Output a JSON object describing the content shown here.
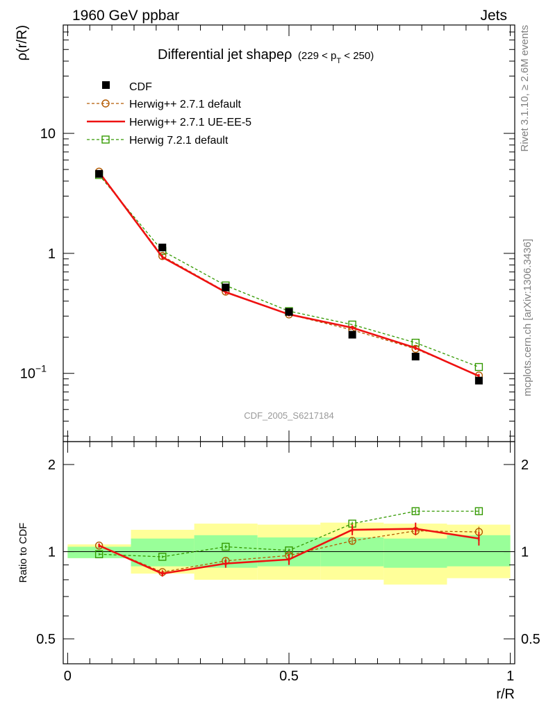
{
  "header": {
    "left": "1960 GeV ppbar",
    "right": "Jets"
  },
  "side_texts": {
    "rivet": "Rivet 3.1.10, ≥ 2.6M events",
    "mcplots": "mcplots.cern.ch [arXiv:1306.3436]"
  },
  "colors": {
    "cdf": "#000000",
    "herwigpp_default": "#b35900",
    "herwigpp_ueee5": "#ee1111",
    "herwig7": "#339900",
    "band_inner": "#99ff99",
    "band_outer": "#ffff99"
  },
  "chart_data": [
    {
      "type": "line",
      "yscale": "log",
      "title": "Differential jet shapeρ",
      "title_suffix": "(229 < p_T < 250)",
      "title_suffix_parts": {
        "pre": "(229 < p",
        "sub": "T",
        "post": " < 250)"
      },
      "ylabel": "ρ(r/R)",
      "xlabel": "",
      "xlim": [
        -0.01,
        1.01
      ],
      "ylim": [
        0.027,
        80
      ],
      "yticks_major": [
        {
          "value": 10,
          "label": "10"
        },
        {
          "value": 1,
          "label": "1"
        },
        {
          "value": 0.1,
          "label": "10",
          "sup": "−1"
        }
      ],
      "watermark": "CDF_2005_S6217184",
      "legend_position": "top-left",
      "x": [
        0.071,
        0.214,
        0.357,
        0.5,
        0.643,
        0.786,
        0.929
      ],
      "series": [
        {
          "name": "CDF",
          "style": "marker-square",
          "values": [
            4.6,
            1.12,
            0.52,
            0.325,
            0.21,
            0.138,
            0.087
          ]
        },
        {
          "name": "Herwig++ 2.7.1 default",
          "style": "dashed-circle",
          "values": [
            4.8,
            0.95,
            0.48,
            0.31,
            0.23,
            0.16,
            0.096
          ]
        },
        {
          "name": "Herwig++ 2.7.1 UE-EE-5",
          "style": "solid",
          "values": [
            4.75,
            0.93,
            0.475,
            0.31,
            0.24,
            0.163,
            0.095
          ]
        },
        {
          "name": "Herwig 7.2.1 default",
          "style": "dashed-square",
          "values": [
            4.5,
            1.05,
            0.54,
            0.33,
            0.255,
            0.18,
            0.113
          ]
        }
      ]
    },
    {
      "type": "line",
      "yscale": "log",
      "ylabel": "Ratio to CDF",
      "xlabel": "r/R",
      "xlim": [
        -0.01,
        1.01
      ],
      "ylim": [
        0.41,
        2.4
      ],
      "yticks_major": [
        {
          "value": 2,
          "label": "2"
        },
        {
          "value": 1,
          "label": "1"
        },
        {
          "value": 0.5,
          "label": "0.5"
        }
      ],
      "xticks_major": [
        {
          "value": 0,
          "label": "0"
        },
        {
          "value": 0.5,
          "label": "0.5"
        },
        {
          "value": 1,
          "label": "1"
        }
      ],
      "reference_line": 1,
      "bins": [
        [
          0,
          0.143
        ],
        [
          0.143,
          0.286
        ],
        [
          0.286,
          0.429
        ],
        [
          0.429,
          0.571
        ],
        [
          0.571,
          0.714
        ],
        [
          0.714,
          0.857
        ],
        [
          0.857,
          1.0
        ]
      ],
      "band_inner": [
        [
          0.95,
          1.04
        ],
        [
          0.89,
          1.11
        ],
        [
          0.88,
          1.14
        ],
        [
          0.89,
          1.12
        ],
        [
          0.89,
          1.12
        ],
        [
          0.88,
          1.11
        ],
        [
          0.89,
          1.14
        ]
      ],
      "band_outer": [
        [
          0.95,
          1.06
        ],
        [
          0.84,
          1.19
        ],
        [
          0.8,
          1.25
        ],
        [
          0.8,
          1.24
        ],
        [
          0.8,
          1.26
        ],
        [
          0.77,
          1.25
        ],
        [
          0.81,
          1.24
        ]
      ],
      "x": [
        0.071,
        0.214,
        0.357,
        0.5,
        0.643,
        0.786,
        0.929
      ],
      "series": [
        {
          "name": "Herwig++ 2.7.1 default",
          "style": "dashed-circle",
          "values": [
            1.05,
            0.85,
            0.93,
            0.97,
            1.09,
            1.18,
            1.17
          ],
          "errors": [
            0.01,
            0.015,
            0.02,
            0.02,
            0.03,
            0.04,
            0.05
          ]
        },
        {
          "name": "Herwig++ 2.7.1 UE-EE-5",
          "style": "solid",
          "values": [
            1.05,
            0.84,
            0.91,
            0.94,
            1.19,
            1.2,
            1.11
          ],
          "errors": [
            0.01,
            0.02,
            0.03,
            0.04,
            0.05,
            0.06,
            0.06
          ]
        },
        {
          "name": "Herwig 7.2.1 default",
          "style": "dashed-square",
          "values": [
            0.98,
            0.96,
            1.04,
            1.01,
            1.25,
            1.38,
            1.38
          ],
          "errors": [
            0.01,
            0.01,
            0.015,
            0.015,
            0.02,
            0.03,
            0.03
          ]
        }
      ]
    }
  ]
}
